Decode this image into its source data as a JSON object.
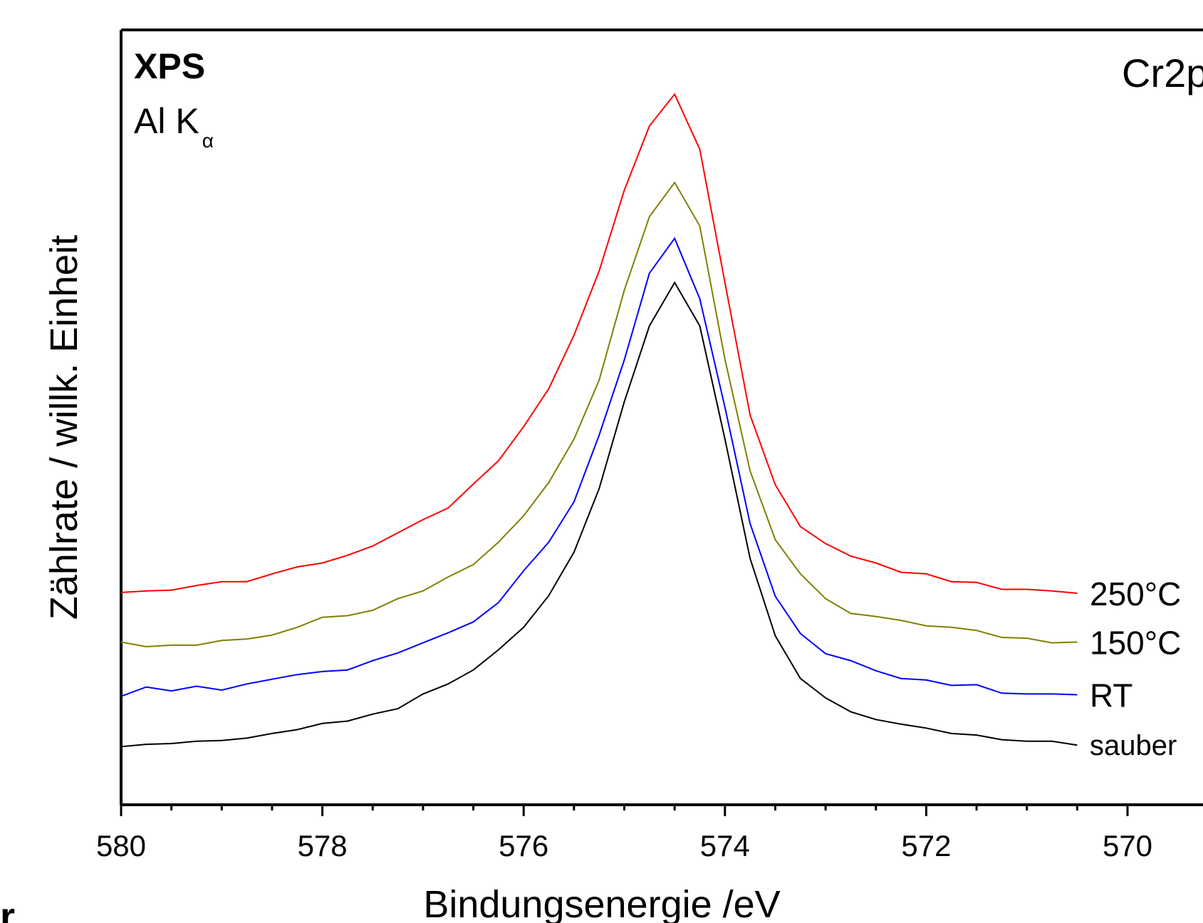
{
  "chart_data": {
    "type": "line",
    "title": "Cr2p",
    "annotations": {
      "method": "XPS",
      "source_main": "Al K",
      "source_sub": "α"
    },
    "xlabel": "Bindungsenergie /eV",
    "ylabel": "Zählrate / willk. Einheit",
    "xlim": [
      580,
      569.25
    ],
    "ylim": [
      0,
      100
    ],
    "x_reversed": true,
    "grid": false,
    "legend": "inline labels at right end of each curve",
    "xticks": [
      {
        "value": 580,
        "label": "580"
      },
      {
        "value": 578,
        "label": "578"
      },
      {
        "value": 576,
        "label": "576"
      },
      {
        "value": 574,
        "label": "574"
      },
      {
        "value": 572,
        "label": "572"
      },
      {
        "value": 570,
        "label": "570"
      }
    ],
    "x": [
      580.0,
      579.75,
      579.5,
      579.25,
      579.0,
      578.75,
      578.5,
      578.25,
      578.0,
      577.75,
      577.5,
      577.25,
      577.0,
      576.75,
      576.5,
      576.25,
      576.0,
      575.75,
      575.5,
      575.25,
      575.0,
      574.75,
      574.5,
      574.25,
      574.0,
      573.75,
      573.5,
      573.25,
      573.0,
      572.75,
      572.5,
      572.25,
      572.0,
      571.75,
      571.5,
      571.25,
      571.0,
      570.75,
      570.5
    ],
    "series": [
      {
        "name": "250°C",
        "color": "#ff0000",
        "values": [
          27.4,
          27.6,
          27.7,
          28.3,
          28.8,
          28.8,
          29.8,
          30.7,
          31.2,
          32.2,
          33.4,
          35.1,
          36.8,
          38.3,
          41.4,
          44.4,
          48.8,
          53.7,
          60.6,
          68.9,
          79.3,
          87.6,
          91.7,
          84.6,
          67.4,
          50.3,
          41.3,
          35.9,
          33.7,
          32.1,
          31.2,
          30.0,
          29.8,
          28.8,
          28.7,
          27.8,
          27.8,
          27.6,
          27.3
        ]
      },
      {
        "name": "150°C",
        "color": "#808000",
        "values": [
          21.0,
          20.4,
          20.6,
          20.6,
          21.2,
          21.4,
          21.9,
          22.9,
          24.2,
          24.4,
          25.1,
          26.6,
          27.6,
          29.4,
          31.0,
          33.9,
          37.3,
          41.6,
          47.2,
          54.8,
          66.4,
          75.9,
          80.3,
          74.7,
          57.5,
          43.1,
          34.2,
          29.8,
          26.6,
          24.7,
          24.3,
          23.8,
          23.1,
          22.9,
          22.5,
          21.6,
          21.5,
          20.9,
          21.0
        ]
      },
      {
        "name": "RT",
        "color": "#0000ff",
        "values": [
          14.0,
          15.2,
          14.7,
          15.3,
          14.8,
          15.6,
          16.2,
          16.8,
          17.2,
          17.4,
          18.6,
          19.6,
          20.9,
          22.2,
          23.6,
          26.1,
          30.2,
          33.9,
          39.1,
          47.7,
          57.4,
          68.6,
          73.1,
          65.3,
          51.3,
          36.3,
          26.9,
          22.1,
          19.5,
          18.6,
          17.3,
          16.3,
          16.1,
          15.4,
          15.5,
          14.4,
          14.3,
          14.3,
          14.2
        ]
      },
      {
        "name": "sauber",
        "color": "#000000",
        "values": [
          7.5,
          7.8,
          7.9,
          8.2,
          8.3,
          8.6,
          9.2,
          9.7,
          10.5,
          10.8,
          11.7,
          12.4,
          14.3,
          15.6,
          17.4,
          20.0,
          22.9,
          27.0,
          32.6,
          40.8,
          52.0,
          61.8,
          67.4,
          61.8,
          47.2,
          31.8,
          21.8,
          16.3,
          13.8,
          12.0,
          11.0,
          10.4,
          9.9,
          9.2,
          9.0,
          8.4,
          8.2,
          8.2,
          7.7
        ]
      }
    ]
  }
}
